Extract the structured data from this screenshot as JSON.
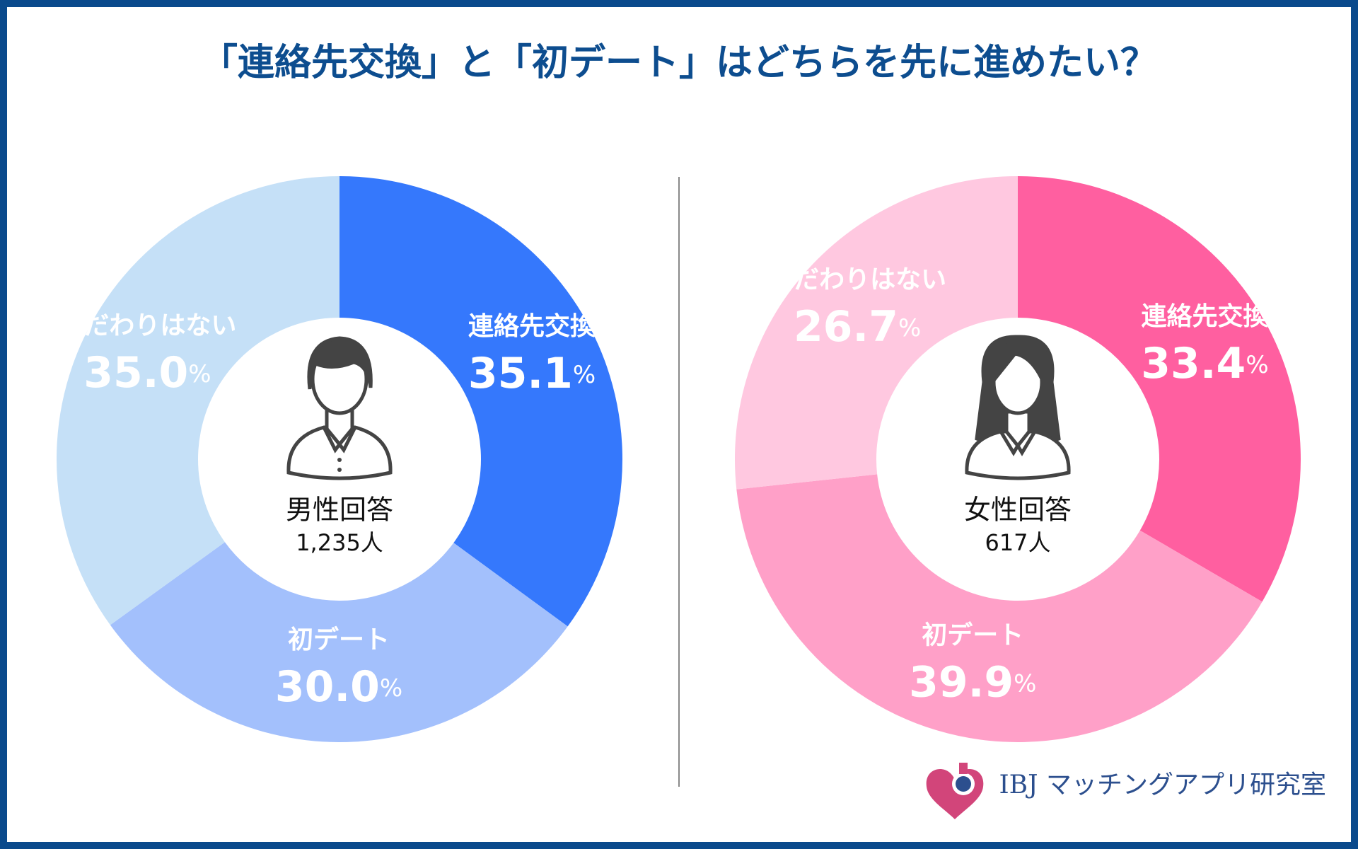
{
  "title": "「連絡先交換」と「初デート」はどちらを先に進めたい？",
  "logo": "IBJ マッチングアプリ研究室",
  "chart_data": [
    {
      "type": "pie",
      "center_label": "男性回答",
      "respondents": "1,235人",
      "categories": [
        "連絡先交換",
        "初デート",
        "こだわりはない"
      ],
      "values": [
        35.1,
        30.0,
        35.0
      ],
      "value_labels": [
        "35.1%",
        "30.0%",
        "35.0%"
      ],
      "colors": [
        "#3578fc",
        "#a3c0fc",
        "#c5e0f7"
      ]
    },
    {
      "type": "pie",
      "center_label": "女性回答",
      "respondents": "617人",
      "categories": [
        "連絡先交換",
        "初デート",
        "こだわりはない"
      ],
      "values": [
        33.4,
        39.9,
        26.7
      ],
      "value_labels": [
        "33.4%",
        "39.9%",
        "26.7%"
      ],
      "colors": [
        "#ff5fa0",
        "#ffa0c8",
        "#ffc8e0"
      ]
    }
  ]
}
